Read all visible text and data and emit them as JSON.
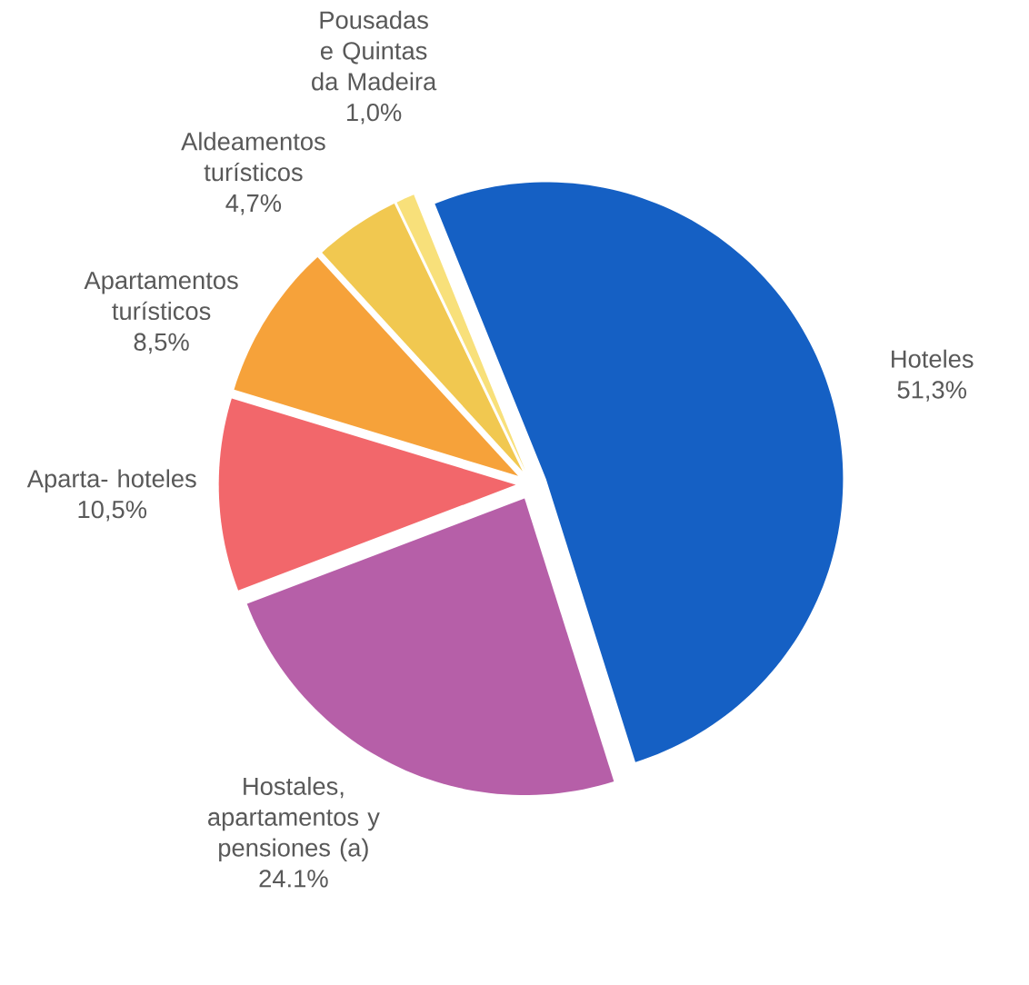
{
  "chart_data": {
    "type": "pie",
    "categories": [
      "Hoteles",
      "Hostales, apartamentos y pensiones (a)",
      "Aparta- hoteles",
      "Apartamentos turísticos",
      "Aldeamentos turísticos",
      "Pousadas e Quintas da Madeira"
    ],
    "values": [
      51.3,
      24.1,
      10.5,
      8.5,
      4.7,
      1.0
    ],
    "value_labels": [
      "51,3%",
      "24.1%",
      "10,5%",
      "8,5%",
      "4,7%",
      "1,0%"
    ],
    "colors": [
      "#1560c4",
      "#b65fa8",
      "#f2676b",
      "#f6a23a",
      "#f1c850",
      "#f8e07a"
    ]
  }
}
